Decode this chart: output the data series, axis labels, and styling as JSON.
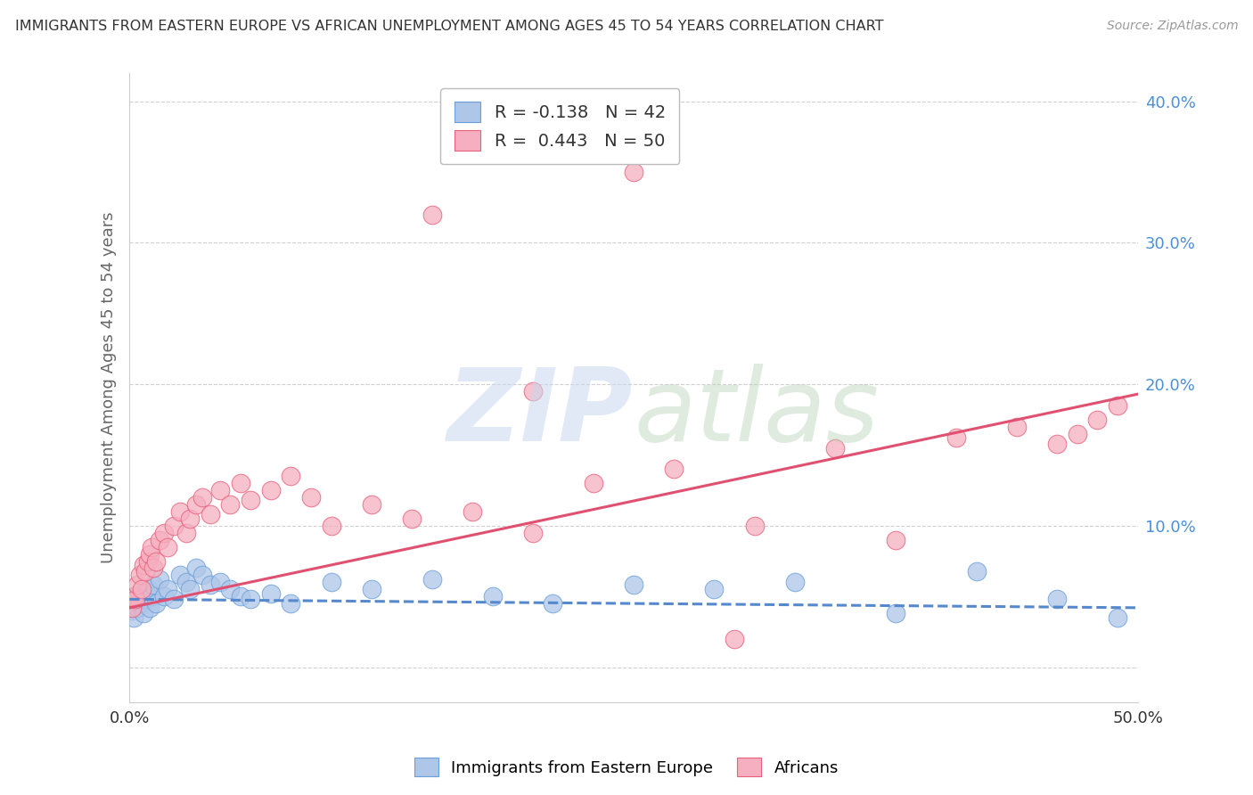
{
  "title": "IMMIGRANTS FROM EASTERN EUROPE VS AFRICAN UNEMPLOYMENT AMONG AGES 45 TO 54 YEARS CORRELATION CHART",
  "source": "Source: ZipAtlas.com",
  "ylabel": "Unemployment Among Ages 45 to 54 years",
  "legend_blue": "R = -0.138   N = 42",
  "legend_pink": "R =  0.443   N = 50",
  "legend_blue_short": "R = -0.138",
  "legend_pink_short": "R = 0.443",
  "blue_N": "N = 42",
  "pink_N": "N = 50",
  "blue_color": "#aec6e8",
  "pink_color": "#f5afc0",
  "blue_edge": "#6a9fd8",
  "pink_edge": "#e8607a",
  "blue_line": "#5588cc",
  "pink_line": "#e05070",
  "xlim": [
    0.0,
    0.5
  ],
  "ylim": [
    -0.025,
    0.42
  ],
  "yticks": [
    0.0,
    0.1,
    0.2,
    0.3,
    0.4
  ],
  "ytick_labels": [
    "",
    "10.0%",
    "20.0%",
    "30.0%",
    "40.0%"
  ],
  "background": "#ffffff",
  "grid_color": "#d0d0d0",
  "blue_scatter_x": [
    0.001,
    0.002,
    0.002,
    0.003,
    0.004,
    0.005,
    0.006,
    0.007,
    0.008,
    0.009,
    0.01,
    0.011,
    0.012,
    0.013,
    0.015,
    0.017,
    0.019,
    0.022,
    0.025,
    0.028,
    0.03,
    0.033,
    0.036,
    0.04,
    0.045,
    0.05,
    0.055,
    0.06,
    0.07,
    0.08,
    0.1,
    0.12,
    0.15,
    0.18,
    0.21,
    0.25,
    0.29,
    0.33,
    0.38,
    0.42,
    0.46,
    0.49
  ],
  "blue_scatter_y": [
    0.04,
    0.048,
    0.035,
    0.05,
    0.042,
    0.045,
    0.052,
    0.038,
    0.048,
    0.055,
    0.042,
    0.05,
    0.058,
    0.045,
    0.062,
    0.05,
    0.055,
    0.048,
    0.065,
    0.06,
    0.055,
    0.07,
    0.065,
    0.058,
    0.06,
    0.055,
    0.05,
    0.048,
    0.052,
    0.045,
    0.06,
    0.055,
    0.062,
    0.05,
    0.045,
    0.058,
    0.055,
    0.06,
    0.038,
    0.068,
    0.048,
    0.035
  ],
  "pink_scatter_x": [
    0.001,
    0.002,
    0.003,
    0.004,
    0.005,
    0.006,
    0.007,
    0.008,
    0.009,
    0.01,
    0.011,
    0.012,
    0.013,
    0.015,
    0.017,
    0.019,
    0.022,
    0.025,
    0.028,
    0.03,
    0.033,
    0.036,
    0.04,
    0.045,
    0.05,
    0.055,
    0.06,
    0.07,
    0.08,
    0.09,
    0.1,
    0.12,
    0.14,
    0.17,
    0.2,
    0.23,
    0.27,
    0.31,
    0.35,
    0.38,
    0.41,
    0.44,
    0.46,
    0.47,
    0.48,
    0.49,
    0.2,
    0.15,
    0.25,
    0.3
  ],
  "pink_scatter_y": [
    0.042,
    0.05,
    0.048,
    0.058,
    0.065,
    0.055,
    0.072,
    0.068,
    0.075,
    0.08,
    0.085,
    0.07,
    0.075,
    0.09,
    0.095,
    0.085,
    0.1,
    0.11,
    0.095,
    0.105,
    0.115,
    0.12,
    0.108,
    0.125,
    0.115,
    0.13,
    0.118,
    0.125,
    0.135,
    0.12,
    0.1,
    0.115,
    0.105,
    0.11,
    0.095,
    0.13,
    0.14,
    0.1,
    0.155,
    0.09,
    0.162,
    0.17,
    0.158,
    0.165,
    0.175,
    0.185,
    0.195,
    0.32,
    0.35,
    0.02
  ],
  "blue_trend_x": [
    0.0,
    0.5
  ],
  "blue_trend_y": [
    0.048,
    0.042
  ],
  "pink_trend_x": [
    0.0,
    0.5
  ],
  "pink_trend_y": [
    0.042,
    0.193
  ]
}
